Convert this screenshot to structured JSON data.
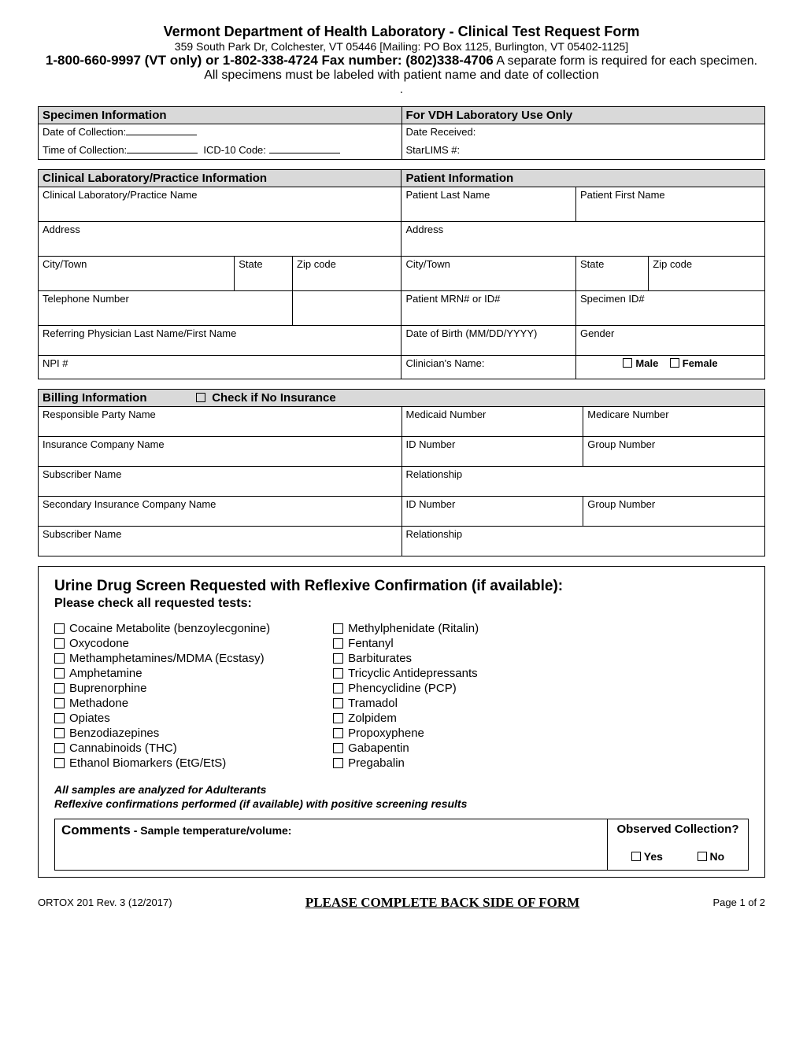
{
  "header": {
    "title": "Vermont Department of Health Laboratory - Clinical Test Request Form",
    "address": "359 South Park Dr, Colchester, VT 05446 [Mailing: PO Box 1125, Burlington, VT 05402-1125]",
    "phone_bold": "1-800-660-9997 (VT only) or 1-802-338-4724 Fax number: (802)338-4706",
    "note": " A separate form is required for each specimen. All specimens must be labeled with patient name and date of collection",
    "note_end": "."
  },
  "specimen": {
    "heading": "Specimen Information",
    "date_label": "Date of Collection:",
    "time_label": "Time of Collection:",
    "icd_label": "ICD-10 Code:",
    "lab_heading": "For VDH Laboratory Use Only",
    "received_label": "Date Received:",
    "starlims_label": "StarLIMS #:"
  },
  "clinical": {
    "heading": "Clinical Laboratory/Practice Information",
    "name": "Clinical Laboratory/Practice Name",
    "address": "Address",
    "city": "City/Town",
    "state": "State",
    "zip": "Zip code",
    "tel": "Telephone Number",
    "ref": "Referring Physician Last Name/First Name",
    "npi": "NPI #"
  },
  "patient": {
    "heading": "Patient Information",
    "last": "Patient Last Name",
    "first": "Patient First Name",
    "address": "Address",
    "city": "City/Town",
    "state": "State",
    "zip": "Zip code",
    "mrn": "Patient MRN# or ID#",
    "spec": "Specimen ID#",
    "dob": "Date of Birth (MM/DD/YYYY)",
    "gender": "Gender",
    "clinician": "Clinician's Name:",
    "male": "Male",
    "female": "Female"
  },
  "billing": {
    "heading": "Billing Information",
    "no_ins": "Check if No Insurance",
    "party": "Responsible Party Name",
    "medicaid": "Medicaid Number",
    "medicare": "Medicare Number",
    "ins": "Insurance Company Name",
    "id": "ID Number",
    "group": "Group Number",
    "sub": "Subscriber Name",
    "rel": "Relationship",
    "sec": "Secondary Insurance Company Name"
  },
  "tests": {
    "title": "Urine Drug Screen Requested with Reflexive Confirmation (if available):",
    "subtitle": "Please check all requested tests:",
    "col1": [
      "Cocaine Metabolite (benzoylecgonine)",
      "Oxycodone",
      "Methamphetamines/MDMA (Ecstasy)",
      "Amphetamine",
      "Buprenorphine",
      "Methadone",
      "Opiates",
      "Benzodiazepines",
      "Cannabinoids (THC)",
      "Ethanol Biomarkers (EtG/EtS)"
    ],
    "col2": [
      "Methylphenidate (Ritalin)",
      "Fentanyl",
      "Barbiturates",
      "Tricyclic Antidepressants",
      "Phencyclidine (PCP)",
      "Tramadol",
      "Zolpidem",
      "Propoxyphene",
      "Gabapentin",
      "Pregabalin"
    ],
    "note1": "All samples are analyzed for Adulterants",
    "note2": "Reflexive confirmations performed (if available) with positive screening results"
  },
  "comments": {
    "title": "Comments",
    "sub": " - Sample temperature/volume:",
    "observed": "Observed Collection?",
    "yes": "Yes",
    "no": "No"
  },
  "footer": {
    "rev": "ORTOX 201 Rev. 3 (12/2017)",
    "mid": "PLEASE COMPLETE BACK SIDE OF FORM",
    "page": "Page 1 of 2"
  }
}
